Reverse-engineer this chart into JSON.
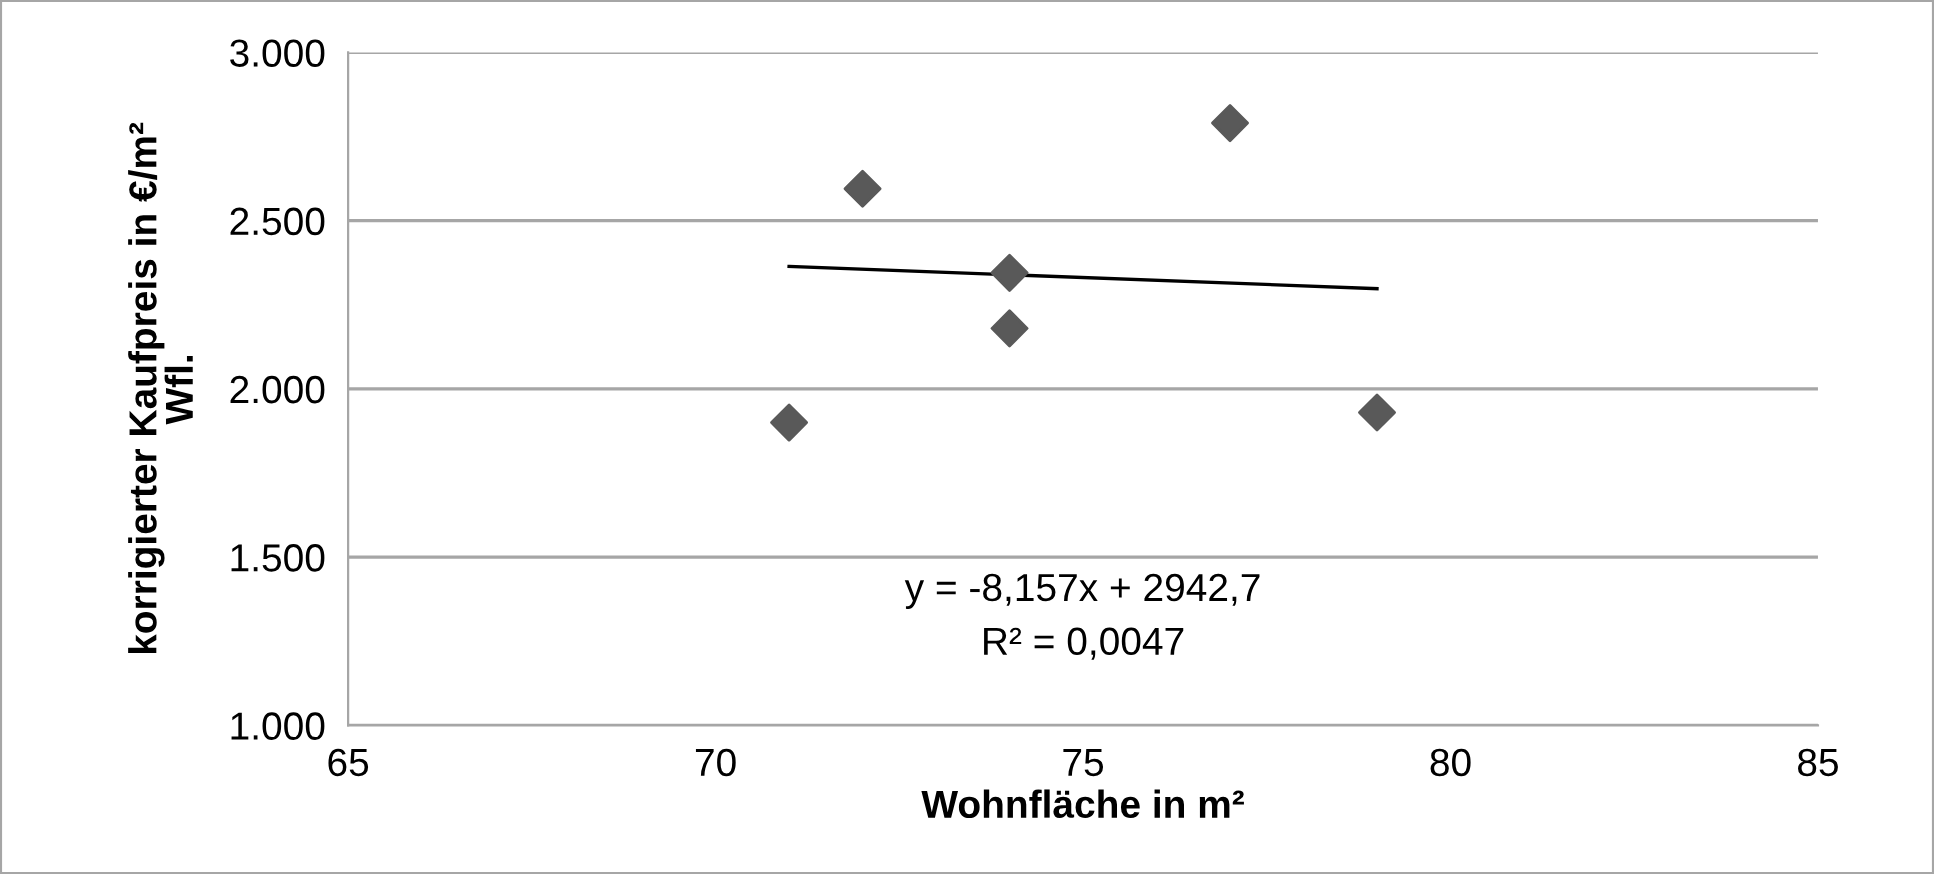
{
  "chart_data": {
    "type": "scatter",
    "xlabel": "Wohnfläche in m²",
    "ylabel": "korrigierter Kaufpreis in €/m²\nWfl.",
    "xlim": [
      65,
      85
    ],
    "xticks": [
      65,
      70,
      75,
      80,
      85
    ],
    "ylim": [
      1000,
      3000
    ],
    "yticks": [
      {
        "value": 1000,
        "label": "1.000"
      },
      {
        "value": 1500,
        "label": "1.500"
      },
      {
        "value": 2000,
        "label": "2.000"
      },
      {
        "value": 2500,
        "label": "2.500"
      },
      {
        "value": 3000,
        "label": "3.000"
      }
    ],
    "grid": "y",
    "legend": false,
    "series": [
      {
        "marker": "diamond",
        "color": "#595959",
        "x": [
          71,
          72,
          74,
          74,
          77,
          79
        ],
        "values": [
          1900,
          2595,
          2345,
          2180,
          2790,
          1930
        ]
      },
      {
        "type": "line",
        "marker": "none",
        "color": "#000000",
        "x": [
          71,
          79
        ],
        "values": [
          2364,
          2298
        ]
      }
    ],
    "annotations": [
      "y = -8,157x + 2942,7",
      "R² = 0,0047"
    ]
  }
}
